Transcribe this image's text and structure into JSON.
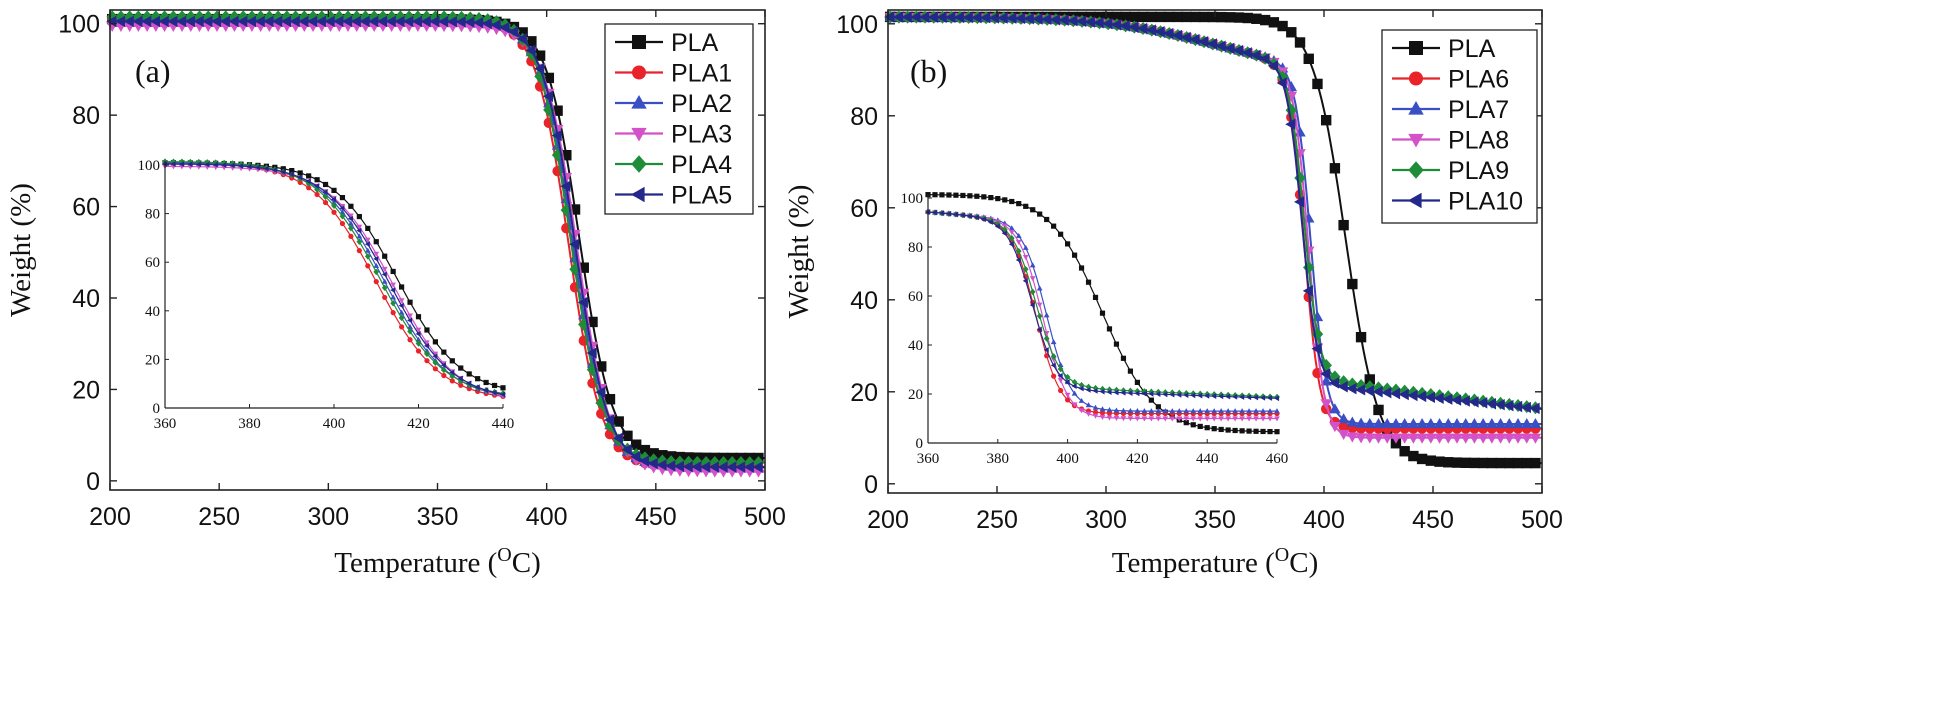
{
  "chart_data": [
    {
      "type": "line",
      "panel_label": "(a)",
      "xlabel_main": "Temperature (",
      "xlabel_sup": "O",
      "xlabel_end": "C)",
      "ylabel": "Weight (%)",
      "xlim": [
        200,
        500
      ],
      "ylim": [
        -2,
        103
      ],
      "xticks": [
        200,
        250,
        300,
        350,
        400,
        450,
        500
      ],
      "yticks": [
        0,
        20,
        40,
        60,
        80,
        100
      ],
      "legend_position": "top-right",
      "series": [
        {
          "name": "PLA",
          "color": "#111111",
          "marker": "square",
          "T50": 415,
          "width": 7.5,
          "residue": 5,
          "start": 101
        },
        {
          "name": "PLA1",
          "color": "#e8232a",
          "marker": "circle",
          "T50": 410,
          "width": 7.5,
          "residue": 3,
          "start": 101
        },
        {
          "name": "PLA2",
          "color": "#3b4fc4",
          "marker": "triangle",
          "T50": 412,
          "width": 7.5,
          "residue": 3,
          "start": 101
        },
        {
          "name": "PLA3",
          "color": "#d452c9",
          "marker": "tri_down",
          "T50": 414,
          "width": 7.5,
          "residue": 2,
          "start": 99.5
        },
        {
          "name": "PLA4",
          "color": "#1f8c3a",
          "marker": "diamond",
          "T50": 411,
          "width": 7.5,
          "residue": 4,
          "start": 101.5
        },
        {
          "name": "PLA5",
          "color": "#24288a",
          "marker": "tri_left",
          "T50": 413,
          "width": 7.5,
          "residue": 3,
          "start": 100.5
        }
      ],
      "inset": {
        "xlim": [
          360,
          440
        ],
        "ylim": [
          0,
          100
        ],
        "xticks": [
          360,
          380,
          400,
          420,
          440
        ],
        "yticks": [
          0,
          20,
          40,
          60,
          80,
          100
        ]
      }
    },
    {
      "type": "line",
      "panel_label": "(b)",
      "xlabel_main": "Temperature (",
      "xlabel_sup": "O",
      "xlabel_end": "C)",
      "ylabel": "Weight (%)",
      "xlim": [
        200,
        500
      ],
      "ylim": [
        -2,
        103
      ],
      "xticks": [
        200,
        250,
        300,
        350,
        400,
        450,
        500
      ],
      "yticks": [
        0,
        20,
        40,
        60,
        80,
        100
      ],
      "legend_position": "top-right",
      "series": [
        {
          "name": "PLA",
          "color": "#111111",
          "marker": "square",
          "T50": 410,
          "width": 7.5,
          "residue": 4.5,
          "start": 101.5,
          "residue_slope": 0,
          "early_loss": 0
        },
        {
          "name": "PLA6",
          "color": "#e8232a",
          "marker": "circle",
          "T50": 391,
          "width": 3.5,
          "residue": 12,
          "start": 101.5,
          "residue_slope": 0,
          "early_loss": 12
        },
        {
          "name": "PLA7",
          "color": "#3b4fc4",
          "marker": "triangle",
          "T50": 394,
          "width": 3.5,
          "residue": 13,
          "start": 101.5,
          "residue_slope": 0,
          "early_loss": 12
        },
        {
          "name": "PLA8",
          "color": "#d452c9",
          "marker": "tri_down",
          "T50": 393,
          "width": 3.5,
          "residue": 10,
          "start": 101.5,
          "residue_slope": 0,
          "early_loss": 12
        },
        {
          "name": "PLA9",
          "color": "#1f8c3a",
          "marker": "diamond",
          "T50": 391,
          "width": 3.5,
          "residue": 22,
          "start": 101.5,
          "residue_slope": -0.06,
          "early_loss": 12
        },
        {
          "name": "PLA10",
          "color": "#24288a",
          "marker": "tri_left",
          "T50": 390,
          "width": 3.5,
          "residue": 21,
          "start": 101.5,
          "residue_slope": -0.05,
          "early_loss": 12
        }
      ],
      "inset": {
        "xlim": [
          360,
          460
        ],
        "ylim": [
          0,
          100
        ],
        "xticks": [
          360,
          380,
          400,
          420,
          440,
          460
        ],
        "yticks": [
          0,
          20,
          40,
          60,
          80,
          100
        ]
      }
    }
  ]
}
